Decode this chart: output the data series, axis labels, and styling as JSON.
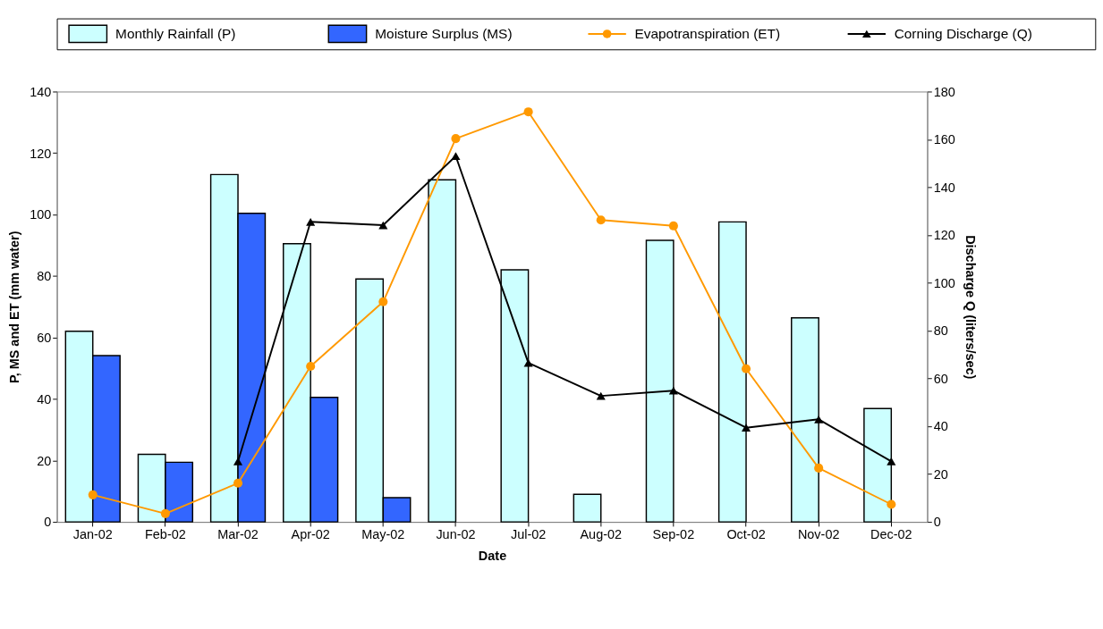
{
  "chart_data": {
    "type": "bar",
    "categories": [
      "Jan-02",
      "Feb-02",
      "Mar-02",
      "Apr-02",
      "May-02",
      "Jun-02",
      "Jul-02",
      "Aug-02",
      "Sep-02",
      "Oct-02",
      "Nov-02",
      "Dec-02"
    ],
    "xlabel": "Date",
    "ylabel": "P, MS and ET (mm water)",
    "y2label": "Discharge Q (liters/sec)",
    "series": [
      {
        "name": "Monthly Rainfall (P)",
        "color": "#ccffff",
        "values": [
          62,
          22,
          113,
          90.5,
          79,
          111.3,
          82,
          9,
          91.6,
          97.6,
          66.4,
          36.9
        ]
      },
      {
        "name": "Moisture Surplus (MS)",
        "color": "#3366ff",
        "values": [
          54.1,
          19.4,
          100.4,
          40.5,
          7.9,
          null,
          null,
          null,
          null,
          null,
          null,
          null
        ]
      },
      {
        "name": "Evapotranspiration (ET)",
        "type": "line",
        "color": "#ff9900",
        "marker": "circle",
        "values": [
          8.8,
          2.7,
          12.6,
          50.6,
          71.6,
          124.7,
          133.4,
          98.2,
          96.3,
          49.8,
          17.5,
          5.7
        ]
      },
      {
        "name": "Corning Discharge (Q)",
        "type": "line",
        "color": "#000000",
        "marker": "triangle",
        "axis": "y2",
        "values": [
          null,
          null,
          25.3,
          125.5,
          124.1,
          153,
          66.5,
          52.7,
          54.9,
          39.4,
          42.9,
          25.3
        ]
      }
    ],
    "ylim": [
      0,
      140
    ],
    "yticks": [
      0,
      20,
      40,
      60,
      80,
      100,
      120,
      140
    ],
    "y2lim": [
      0,
      180
    ],
    "y2ticks": [
      0,
      20,
      40,
      60,
      80,
      100,
      120,
      140,
      160,
      180
    ],
    "legend": "top",
    "grid": false,
    "line_style": "solid"
  }
}
